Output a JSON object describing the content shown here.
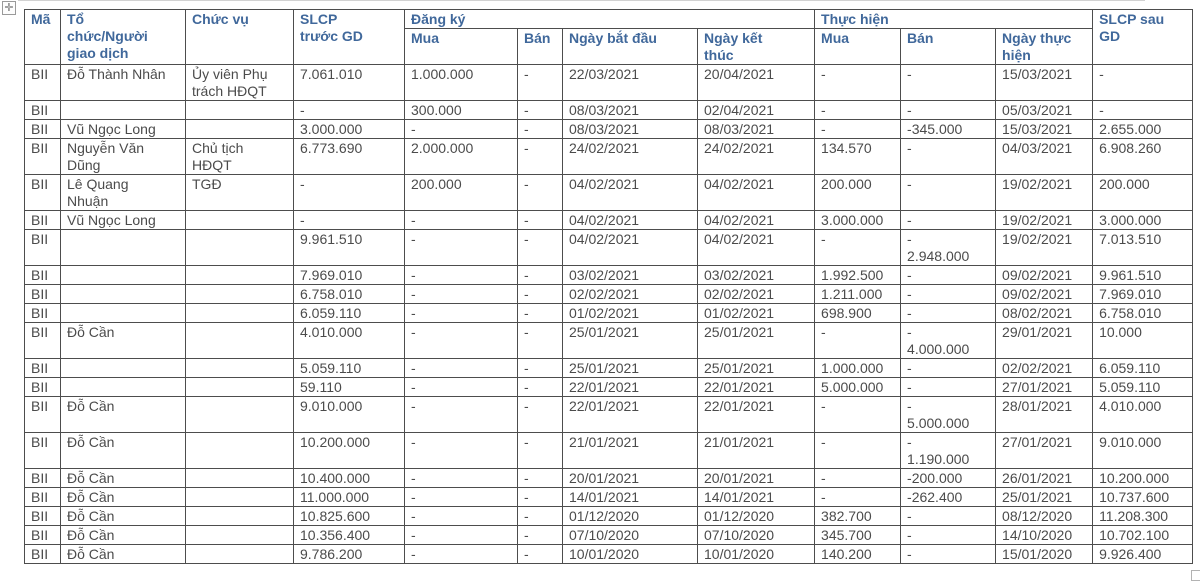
{
  "colors": {
    "header_text": "#40689B",
    "body_text": "#4B4B4B",
    "border": "#4D4D4D"
  },
  "icons": {
    "move_handle": "four-way-move-cross",
    "move_handle_glyph": "✛",
    "resize_handle": "table-resize-square"
  },
  "table": {
    "headers": {
      "ma": "Mã",
      "to_chuc": "Tổ\nchức/Người\ngiao dịch",
      "chuc_vu": "Chức vụ",
      "slcp_truoc": "SLCP\ntrước GD",
      "dang_ky": "Đăng ký",
      "thuc_hien": "Thực hiện",
      "dk_mua": "Mua",
      "dk_ban": "Bán",
      "ngay_bat_dau": "Ngày bắt đầu",
      "ngay_ket_thuc": "Ngày kết\nthúc",
      "th_mua": "Mua",
      "th_ban": "Bán",
      "ngay_thuc_hien": "Ngày thực\nhiện",
      "slcp_sau": "SLCP sau\nGD"
    },
    "column_keys": [
      "ma",
      "to-chuc-nguoi-giao-dich",
      "chuc-vu",
      "slcp-truoc-gd",
      "dang-ky-mua",
      "dang-ky-ban",
      "ngay-bat-dau",
      "ngay-ket-thuc",
      "thuc-hien-mua",
      "thuc-hien-ban",
      "ngay-thuc-hien",
      "slcp-sau-gd"
    ],
    "rows": [
      [
        "BII",
        "Đỗ Thành Nhân",
        "Ủy viên Phụ\ntrách HĐQT",
        "7.061.010",
        "1.000.000",
        "-",
        "22/03/2021",
        "20/04/2021",
        "-",
        "-",
        "15/03/2021",
        "-"
      ],
      [
        "BII",
        "",
        "",
        "-",
        "300.000",
        "-",
        "08/03/2021",
        "02/04/2021",
        "-",
        "-",
        "05/03/2021",
        "-"
      ],
      [
        "BII",
        "Vũ Ngọc Long",
        "",
        "3.000.000",
        "-",
        "-",
        "08/03/2021",
        "08/03/2021",
        "-",
        "-345.000",
        "15/03/2021",
        "2.655.000"
      ],
      [
        "BII",
        "Nguyễn Văn\nDũng",
        "Chủ tịch\nHĐQT",
        "6.773.690",
        "2.000.000",
        "-",
        "24/02/2021",
        "24/02/2021",
        "134.570",
        "-",
        "04/03/2021",
        "6.908.260"
      ],
      [
        "BII",
        "Lê Quang\nNhuận",
        "TGĐ",
        "-",
        "200.000",
        "-",
        "04/02/2021",
        "04/02/2021",
        "200.000",
        "-",
        "19/02/2021",
        "200.000"
      ],
      [
        "BII",
        "Vũ Ngọc Long",
        "",
        "-",
        "-",
        "-",
        "04/02/2021",
        "04/02/2021",
        "3.000.000",
        "-",
        "19/02/2021",
        "3.000.000"
      ],
      [
        "BII",
        "",
        "",
        "9.961.510",
        "-",
        "-",
        "04/02/2021",
        "04/02/2021",
        "-",
        "-\n2.948.000",
        "19/02/2021",
        "7.013.510"
      ],
      [
        "BII",
        "",
        "",
        "7.969.010",
        "-",
        "-",
        "03/02/2021",
        "03/02/2021",
        "1.992.500",
        "-",
        "09/02/2021",
        "9.961.510"
      ],
      [
        "BII",
        "",
        "",
        "6.758.010",
        "-",
        "-",
        "02/02/2021",
        "02/02/2021",
        "1.211.000",
        "-",
        "09/02/2021",
        "7.969.010"
      ],
      [
        "BII",
        "",
        "",
        "6.059.110",
        "-",
        "-",
        "01/02/2021",
        "01/02/2021",
        "698.900",
        "-",
        "08/02/2021",
        "6.758.010"
      ],
      [
        "BII",
        "Đỗ Cần",
        "",
        "4.010.000",
        "-",
        "-",
        "25/01/2021",
        "25/01/2021",
        "-",
        "-\n4.000.000",
        "29/01/2021",
        "10.000"
      ],
      [
        "BII",
        "",
        "",
        "5.059.110",
        "-",
        "-",
        "25/01/2021",
        "25/01/2021",
        "1.000.000",
        "-",
        "02/02/2021",
        "6.059.110"
      ],
      [
        "BII",
        "",
        "",
        "59.110",
        "-",
        "-",
        "22/01/2021",
        "22/01/2021",
        "5.000.000",
        "-",
        "27/01/2021",
        "5.059.110"
      ],
      [
        "BII",
        "Đỗ Cần",
        "",
        "9.010.000",
        "-",
        "-",
        "22/01/2021",
        "22/01/2021",
        "-",
        "-\n5.000.000",
        "28/01/2021",
        "4.010.000"
      ],
      [
        "BII",
        "Đỗ Cần",
        "",
        "10.200.000",
        "-",
        "-",
        "21/01/2021",
        "21/01/2021",
        "-",
        "-\n1.190.000",
        "27/01/2021",
        "9.010.000"
      ],
      [
        "BII",
        "Đỗ Cần",
        "",
        "10.400.000",
        "-",
        "-",
        "20/01/2021",
        "20/01/2021",
        "-",
        "-200.000",
        "26/01/2021",
        "10.200.000"
      ],
      [
        "BII",
        "Đỗ Cần",
        "",
        "11.000.000",
        "-",
        "-",
        "14/01/2021",
        "14/01/2021",
        "-",
        "-262.400",
        "25/01/2021",
        "10.737.600"
      ],
      [
        "BII",
        "Đỗ Cần",
        "",
        "10.825.600",
        "-",
        "-",
        "01/12/2020",
        "01/12/2020",
        "382.700",
        "-",
        "08/12/2020",
        "11.208.300"
      ],
      [
        "BII",
        "Đỗ Cần",
        "",
        "10.356.400",
        "-",
        "-",
        "07/10/2020",
        "07/10/2020",
        "345.700",
        "-",
        "14/10/2020",
        "10.702.100"
      ],
      [
        "BII",
        "Đỗ Cần",
        "",
        "9.786.200",
        "-",
        "-",
        "10/01/2020",
        "10/01/2020",
        "140.200",
        "-",
        "15/01/2020",
        "9.926.400"
      ]
    ]
  }
}
